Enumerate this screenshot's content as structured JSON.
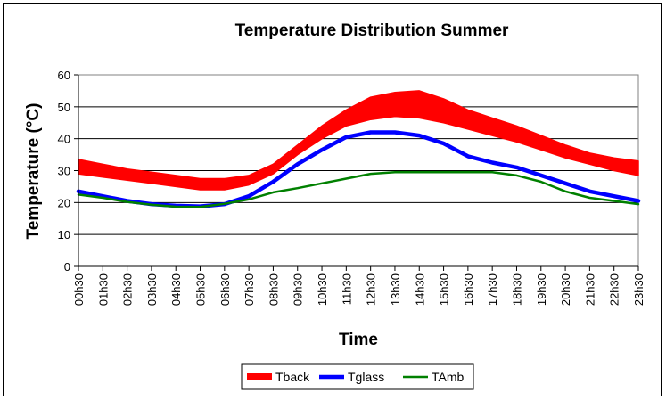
{
  "chart_data": {
    "type": "line",
    "title": "Temperature Distribution Summer",
    "xlabel": "Time",
    "ylabel": "Temperature (°C)",
    "ylim": [
      0,
      60
    ],
    "yticks": [
      "0",
      "10",
      "20",
      "30",
      "40",
      "50",
      "60"
    ],
    "grid": true,
    "legend_position": "bottom-center",
    "categories": [
      "00h30",
      "01h30",
      "02h30",
      "03h30",
      "04h30",
      "05h30",
      "06h30",
      "07h30",
      "08h30",
      "09h30",
      "10h30",
      "11h30",
      "12h30",
      "13h30",
      "14h30",
      "15h30",
      "16h30",
      "17h30",
      "18h30",
      "19h30",
      "20h30",
      "21h30",
      "22h30",
      "23h30"
    ],
    "series": [
      {
        "name": "Tback",
        "color": "#ff0000",
        "style": "band",
        "upper": [
          33.5,
          32,
          30.5,
          29.5,
          28.5,
          27.5,
          27.5,
          28.5,
          32,
          38,
          44,
          49,
          53,
          54.5,
          55,
          52.5,
          49,
          46.5,
          44,
          41,
          38,
          35.5,
          34,
          33
        ],
        "lower": [
          29,
          28,
          27,
          26,
          25,
          24,
          24,
          25.5,
          29,
          35,
          40,
          44,
          46,
          47,
          46.5,
          45,
          43,
          41,
          39,
          36.5,
          34,
          32,
          30,
          28.5
        ]
      },
      {
        "name": "Tglass",
        "color": "#0000ff",
        "style": "thick-line",
        "values": [
          23.5,
          22,
          20.5,
          19.5,
          19,
          18.8,
          19.5,
          22,
          26.5,
          32,
          36.5,
          40.5,
          42,
          42,
          41,
          38.5,
          34.5,
          32.5,
          31,
          28.5,
          26,
          23.5,
          22,
          20.5
        ]
      },
      {
        "name": "TAmb",
        "color": "#008000",
        "style": "line",
        "values": [
          22.5,
          21.5,
          20.2,
          19.3,
          18.7,
          18.6,
          19.6,
          21,
          23.2,
          24.5,
          26,
          27.5,
          29,
          29.5,
          29.5,
          29.5,
          29.5,
          29.5,
          28.5,
          26.5,
          23.5,
          21.5,
          20.5,
          19.5
        ]
      }
    ]
  }
}
